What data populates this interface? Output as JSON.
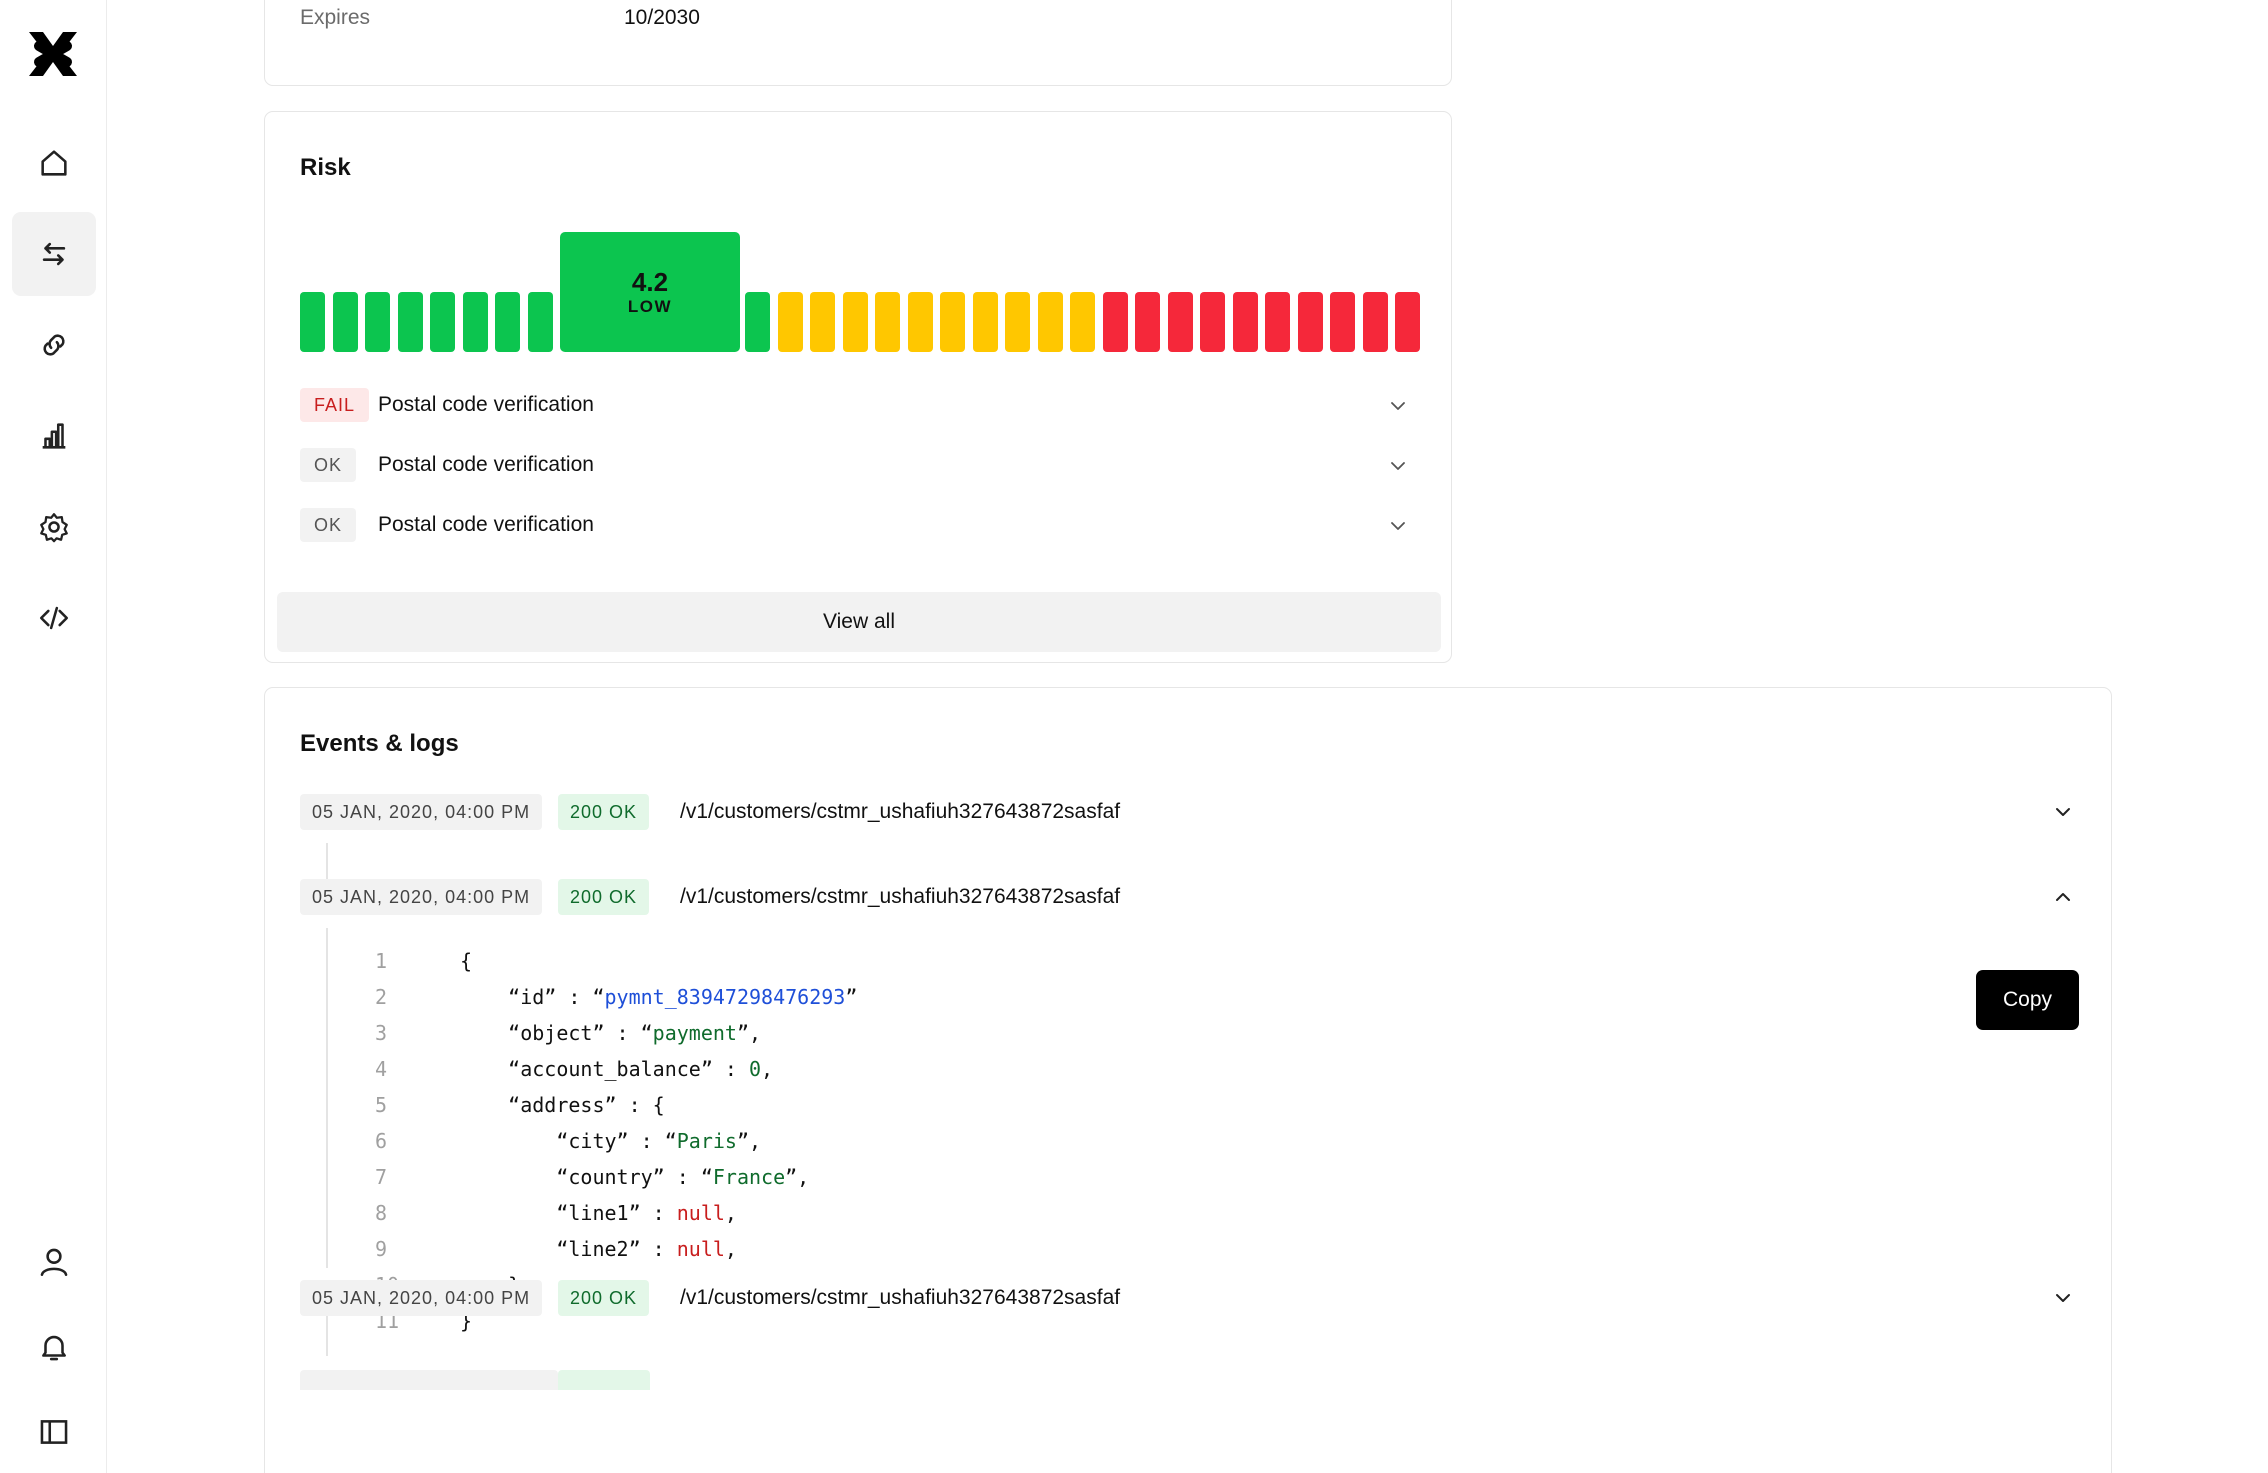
{
  "sidebar": {
    "logo": "brand-logo",
    "nav_top": [
      "home-icon",
      "transfer-icon",
      "link-icon",
      "chart-icon",
      "settings-icon",
      "code-icon"
    ],
    "nav_bottom": [
      "user-icon",
      "bell-icon",
      "sidebar-panel-icon"
    ],
    "active_item": "transfer-icon"
  },
  "card_details": {
    "expires_label": "Expires",
    "expires_value": "10/2030"
  },
  "risk": {
    "title": "Risk",
    "score": "4.2",
    "level": "LOW",
    "colors": {
      "low": "#0cc54f",
      "medium": "#ffc700",
      "high": "#f5283a"
    },
    "checks": [
      {
        "status": "FAIL",
        "label": "Postal code verification"
      },
      {
        "status": "OK",
        "label": "Postal code verification"
      },
      {
        "status": "OK",
        "label": "Postal code verification"
      }
    ],
    "view_all_label": "View all"
  },
  "events": {
    "title": "Events & logs",
    "rows": [
      {
        "timestamp": "05 JAN, 2020, 04:00 PM",
        "status": "200 OK",
        "path": "/v1/customers/cstmr_ushafiuh327643872sasfaf",
        "expanded": false
      },
      {
        "timestamp": "05 JAN, 2020, 04:00 PM",
        "status": "200 OK",
        "path": "/v1/customers/cstmr_ushafiuh327643872sasfaf",
        "expanded": true
      },
      {
        "timestamp": "05 JAN, 2020, 04:00 PM",
        "status": "200 OK",
        "path": "/v1/customers/cstmr_ushafiuh327643872sasfaf",
        "expanded": false
      }
    ],
    "copy_label": "Copy",
    "line_numbers": [
      "1",
      "2",
      "3",
      "4",
      "5",
      "6",
      "7",
      "8",
      "9",
      "10",
      "11"
    ],
    "code": {
      "l1": "{",
      "id_key": "“id” : “",
      "id_val": "pymnt_83947298476293",
      "id_end": "”",
      "object_key": "“object” : “",
      "object_val": "payment",
      "object_end": "”,",
      "balance_key": "“account_balance” : ",
      "balance_val": "0",
      "balance_end": ",",
      "address_key": "“address” : {",
      "city_key": "“city” : “",
      "city_val": "Paris",
      "city_end": "”,",
      "country_key": "“country” : “",
      "country_val": "France",
      "country_end": "”,",
      "line1_key": "“line1” : ",
      "line1_val": "null",
      "line1_end": ",",
      "line2_key": "“line2” : ",
      "line2_val": "null",
      "line2_end": ",",
      "l10": "}",
      "l11": "}"
    }
  }
}
